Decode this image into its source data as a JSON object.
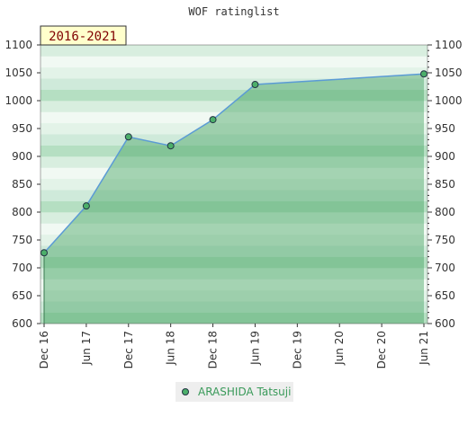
{
  "chart_data": {
    "type": "line",
    "title": "WOF ratinglist",
    "period_label": "2016-2021",
    "categories": [
      "Dec 16",
      "Jun 17",
      "Dec 17",
      "Jun 18",
      "Dec 18",
      "Jun 19",
      "Dec 19",
      "Jun 20",
      "Dec 20",
      "Jun 21"
    ],
    "series": [
      {
        "name": "ARASHIDA Tatsuji",
        "color": "#5b9bd5",
        "x": [
          "Dec 16",
          "Jun 17",
          "Dec 17",
          "Jun 18",
          "Dec 18",
          "Jun 19",
          "Jun 21"
        ],
        "values": [
          727,
          811,
          935,
          919,
          966,
          1029,
          1048
        ]
      }
    ],
    "ylim": [
      600,
      1100
    ],
    "yticks": [
      600,
      650,
      700,
      750,
      800,
      850,
      900,
      950,
      1000,
      1050,
      1100
    ],
    "y2lim": [
      600,
      1100
    ],
    "y2ticks": [
      600,
      650,
      700,
      750,
      800,
      850,
      900,
      950,
      1000,
      1050,
      1100
    ]
  }
}
